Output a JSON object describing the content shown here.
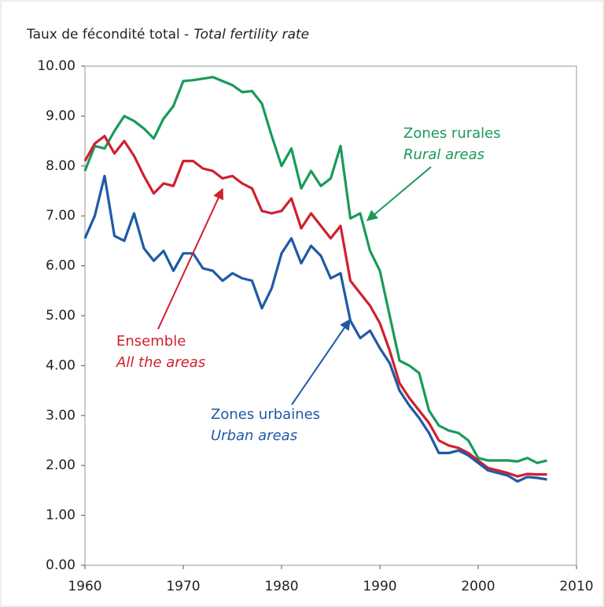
{
  "chart_data": {
    "type": "line",
    "title": [
      "Taux de fécondité total -",
      "Total fertility rate"
    ],
    "x": [
      1960,
      1961,
      1962,
      1963,
      1964,
      1965,
      1966,
      1967,
      1968,
      1969,
      1970,
      1971,
      1972,
      1973,
      1974,
      1975,
      1976,
      1977,
      1978,
      1979,
      1980,
      1981,
      1982,
      1983,
      1984,
      1985,
      1986,
      1987,
      1988,
      1989,
      1990,
      1991,
      1992,
      1993,
      1994,
      1995,
      1996,
      1997,
      1998,
      1999,
      2000,
      2001,
      2002,
      2003,
      2004,
      2005,
      2006,
      2007
    ],
    "series": [
      {
        "name": [
          "Zones rurales",
          "Rural areas"
        ],
        "color": "#1a9a5a",
        "values": [
          7.9,
          8.4,
          8.35,
          8.7,
          9.0,
          8.9,
          8.75,
          8.55,
          8.95,
          9.2,
          9.7,
          9.72,
          9.75,
          9.78,
          9.7,
          9.62,
          9.48,
          9.5,
          9.25,
          8.6,
          8.0,
          8.35,
          7.55,
          7.9,
          7.6,
          7.75,
          8.4,
          6.95,
          7.05,
          6.3,
          5.9,
          5.0,
          4.1,
          4.0,
          3.85,
          3.1,
          2.8,
          2.7,
          2.65,
          2.5,
          2.15,
          2.1,
          2.1,
          2.1,
          2.08,
          2.15,
          2.05,
          2.1
        ]
      },
      {
        "name": [
          "Ensemble",
          "All the areas"
        ],
        "color": "#d0202f",
        "values": [
          8.1,
          8.45,
          8.6,
          8.25,
          8.5,
          8.2,
          7.8,
          7.45,
          7.65,
          7.6,
          8.1,
          8.1,
          7.95,
          7.9,
          7.75,
          7.8,
          7.65,
          7.55,
          7.1,
          7.05,
          7.1,
          7.35,
          6.75,
          7.05,
          6.8,
          6.55,
          6.8,
          5.7,
          5.45,
          5.2,
          4.85,
          4.3,
          3.65,
          3.35,
          3.1,
          2.85,
          2.5,
          2.4,
          2.35,
          2.25,
          2.1,
          1.95,
          1.9,
          1.85,
          1.78,
          1.83,
          1.82,
          1.82
        ]
      },
      {
        "name": [
          "Zones urbaines",
          "Urban areas"
        ],
        "color": "#1f5aa6",
        "values": [
          6.55,
          7.0,
          7.8,
          6.6,
          6.5,
          7.05,
          6.35,
          6.1,
          6.3,
          5.9,
          6.25,
          6.25,
          5.95,
          5.9,
          5.7,
          5.85,
          5.75,
          5.7,
          5.15,
          5.55,
          6.25,
          6.55,
          6.05,
          6.4,
          6.2,
          5.75,
          5.85,
          4.9,
          4.55,
          4.7,
          4.35,
          4.05,
          3.5,
          3.2,
          2.95,
          2.65,
          2.25,
          2.25,
          2.3,
          2.2,
          2.05,
          1.9,
          1.85,
          1.8,
          1.68,
          1.77,
          1.75,
          1.72
        ]
      }
    ],
    "xlim": [
      1960,
      2010
    ],
    "xticks": [
      1960,
      1970,
      1980,
      1990,
      2000,
      2010
    ],
    "ylim": [
      0,
      10
    ],
    "yticks": [
      {
        "value": 0,
        "label": "0.00"
      },
      {
        "value": 1,
        "label": "1.00"
      },
      {
        "value": 2,
        "label": "2.00"
      },
      {
        "value": 3,
        "label": "3.00"
      },
      {
        "value": 4,
        "label": "4.00"
      },
      {
        "value": 5,
        "label": "5.00"
      },
      {
        "value": 6,
        "label": "6.00"
      },
      {
        "value": 7,
        "label": "7.00"
      },
      {
        "value": 8,
        "label": "8.00"
      },
      {
        "value": 9,
        "label": "9.00"
      },
      {
        "value": 10,
        "label": "10.00"
      }
    ]
  }
}
